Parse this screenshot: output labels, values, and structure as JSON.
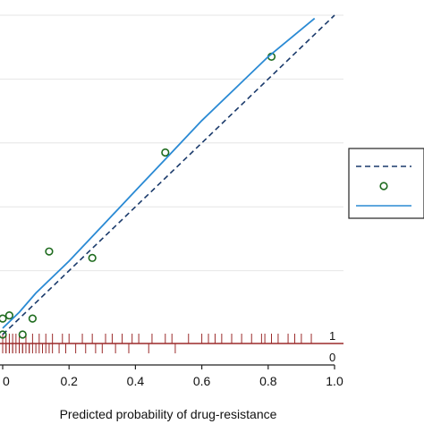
{
  "chart_data": {
    "type": "scatter",
    "title": "",
    "xlabel": "Predicted probability of drug-resistance",
    "ylabel": "",
    "xlim": [
      0,
      1.0
    ],
    "ylim": [
      0,
      1.0
    ],
    "x_ticks": [
      {
        "value": 0.0,
        "label": "0"
      },
      {
        "value": 0.2,
        "label": "0.2"
      },
      {
        "value": 0.4,
        "label": "0.4"
      },
      {
        "value": 0.6,
        "label": "0.6"
      },
      {
        "value": 0.8,
        "label": "0.8"
      },
      {
        "value": 1.0,
        "label": "1.0"
      }
    ],
    "y_gridlines": [
      0.2,
      0.4,
      0.6,
      0.8,
      1.0
    ],
    "grid": true,
    "legend": {
      "placement": "right",
      "entries": [
        {
          "style": "dashed-line",
          "color": "#1a3a6b",
          "label": ""
        },
        {
          "style": "hollow-circle",
          "color": "#1e6b1e",
          "label": ""
        },
        {
          "style": "solid-line",
          "color": "#2a8ad4",
          "label": ""
        }
      ]
    },
    "series": [
      {
        "style": "dashed-line",
        "color": "#1a3a6b",
        "points": [
          [
            0,
            0
          ],
          [
            1.0,
            1.0
          ]
        ]
      },
      {
        "style": "hollow-circle",
        "color": "#1e6b1e",
        "points": [
          [
            0.0,
            0.0
          ],
          [
            0.0,
            0.05
          ],
          [
            0.02,
            0.06
          ],
          [
            0.06,
            0.0
          ],
          [
            0.09,
            0.05
          ],
          [
            0.14,
            0.26
          ],
          [
            0.27,
            0.24
          ],
          [
            0.49,
            0.57
          ],
          [
            0.81,
            0.87
          ]
        ]
      },
      {
        "style": "solid-line",
        "color": "#2a8ad4",
        "points": [
          [
            0.0,
            0.02
          ],
          [
            0.05,
            0.07
          ],
          [
            0.1,
            0.13
          ],
          [
            0.2,
            0.23
          ],
          [
            0.3,
            0.34
          ],
          [
            0.4,
            0.45
          ],
          [
            0.5,
            0.56
          ],
          [
            0.6,
            0.67
          ],
          [
            0.7,
            0.77
          ],
          [
            0.8,
            0.87
          ],
          [
            0.94,
            0.99
          ]
        ]
      }
    ],
    "rug": {
      "color": "#9b2a2a",
      "labels": {
        "top": "1",
        "bottom": "0"
      },
      "top_values": [
        0.0,
        0.01,
        0.02,
        0.03,
        0.04,
        0.05,
        0.07,
        0.09,
        0.11,
        0.13,
        0.15,
        0.18,
        0.2,
        0.24,
        0.27,
        0.31,
        0.33,
        0.36,
        0.39,
        0.41,
        0.45,
        0.49,
        0.51,
        0.56,
        0.6,
        0.62,
        0.64,
        0.66,
        0.69,
        0.72,
        0.75,
        0.78,
        0.79,
        0.81,
        0.83,
        0.86,
        0.88,
        0.9,
        0.93
      ],
      "bottom_values": [
        0.0,
        0.0,
        0.01,
        0.01,
        0.02,
        0.02,
        0.03,
        0.03,
        0.04,
        0.05,
        0.05,
        0.06,
        0.06,
        0.07,
        0.08,
        0.08,
        0.09,
        0.1,
        0.11,
        0.12,
        0.13,
        0.14,
        0.15,
        0.17,
        0.19,
        0.22,
        0.25,
        0.28,
        0.3,
        0.34,
        0.38,
        0.44,
        0.52
      ]
    }
  }
}
